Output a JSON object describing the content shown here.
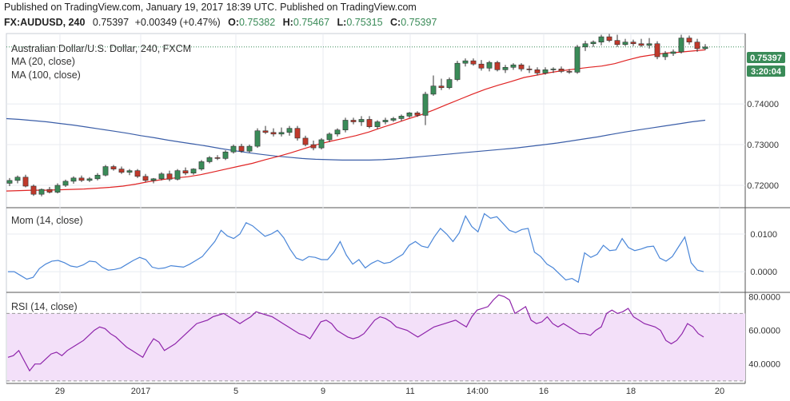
{
  "header": {
    "line1": "Published on TradingView.com, January 19, 2017 18:39 UTC. Published on TradingView.com",
    "symbol": "FX:AUDUSD, 240",
    "last": "0.75397",
    "change": "+0.00349 (+0.47%)",
    "o_label": "O:",
    "o": "0.75382",
    "h_label": "H:",
    "h": "0.75467",
    "l_label": "L:",
    "l": "0.75315",
    "c_label": "C:",
    "c": "0.75397"
  },
  "colors": {
    "up": "#3a8b58",
    "down": "#c0392b",
    "ma20": "#e02424",
    "ma100": "#3b5ea8",
    "mom": "#4a86d8",
    "rsi": "#8e24aa",
    "rsi_band": "#f3e0f9",
    "price_badge": "#3a8b58",
    "grid": "#e8ebf0"
  },
  "chart_data": [
    {
      "type": "candlestick",
      "title": "Australian Dollar/U.S. Dollar, 240, FXCM",
      "legend": [
        "MA (20, close)",
        "MA (100, close)"
      ],
      "x_ticks": [
        "29",
        "2017",
        "5",
        "9",
        "11",
        "14:00",
        "16",
        "18",
        "20"
      ],
      "y_ticks": [
        "0.74000",
        "0.73000",
        "0.72000"
      ],
      "ylim": [
        0.7145,
        0.7573
      ],
      "last_price_label": "0.75397",
      "countdown_label": "3:20:04",
      "candles": [
        [
          0.7205,
          0.7218,
          0.7198,
          0.7212
        ],
        [
          0.7212,
          0.7224,
          0.7205,
          0.722
        ],
        [
          0.722,
          0.7226,
          0.7195,
          0.7198
        ],
        [
          0.7198,
          0.7202,
          0.7174,
          0.7178
        ],
        [
          0.7178,
          0.7192,
          0.7173,
          0.719
        ],
        [
          0.719,
          0.7196,
          0.718,
          0.7183
        ],
        [
          0.7183,
          0.7205,
          0.718,
          0.72
        ],
        [
          0.72,
          0.7214,
          0.7196,
          0.721
        ],
        [
          0.721,
          0.7222,
          0.7204,
          0.7218
        ],
        [
          0.7218,
          0.7224,
          0.7208,
          0.7212
        ],
        [
          0.7212,
          0.722,
          0.7208,
          0.7216
        ],
        [
          0.7216,
          0.723,
          0.7212,
          0.7225
        ],
        [
          0.7225,
          0.725,
          0.7222,
          0.7246
        ],
        [
          0.7246,
          0.725,
          0.7236,
          0.724
        ],
        [
          0.724,
          0.7246,
          0.7228,
          0.7232
        ],
        [
          0.7232,
          0.724,
          0.7225,
          0.7236
        ],
        [
          0.7236,
          0.724,
          0.7218,
          0.7222
        ],
        [
          0.7222,
          0.7228,
          0.7208,
          0.7212
        ],
        [
          0.7212,
          0.7218,
          0.7205,
          0.7216
        ],
        [
          0.7216,
          0.7232,
          0.7212,
          0.7228
        ],
        [
          0.7228,
          0.7236,
          0.721,
          0.7215
        ],
        [
          0.7215,
          0.724,
          0.7212,
          0.7236
        ],
        [
          0.7236,
          0.7244,
          0.7225,
          0.723
        ],
        [
          0.723,
          0.7242,
          0.7226,
          0.724
        ],
        [
          0.724,
          0.7262,
          0.7236,
          0.7258
        ],
        [
          0.7258,
          0.7272,
          0.7254,
          0.7268
        ],
        [
          0.7268,
          0.7274,
          0.7262,
          0.7266
        ],
        [
          0.7266,
          0.7286,
          0.7262,
          0.7282
        ],
        [
          0.7282,
          0.73,
          0.7278,
          0.7296
        ],
        [
          0.7296,
          0.7302,
          0.728,
          0.7284
        ],
        [
          0.7284,
          0.73,
          0.728,
          0.7296
        ],
        [
          0.7296,
          0.734,
          0.7292,
          0.7334
        ],
        [
          0.7334,
          0.7346,
          0.7326,
          0.733
        ],
        [
          0.733,
          0.734,
          0.732,
          0.7326
        ],
        [
          0.7326,
          0.7342,
          0.732,
          0.733
        ],
        [
          0.733,
          0.7346,
          0.7322,
          0.734
        ],
        [
          0.734,
          0.7346,
          0.731,
          0.7316
        ],
        [
          0.7316,
          0.7322,
          0.7296,
          0.73
        ],
        [
          0.73,
          0.731,
          0.7286,
          0.7292
        ],
        [
          0.7292,
          0.7316,
          0.7288,
          0.7312
        ],
        [
          0.7312,
          0.733,
          0.7306,
          0.7326
        ],
        [
          0.7326,
          0.734,
          0.732,
          0.7336
        ],
        [
          0.7336,
          0.7366,
          0.733,
          0.736
        ],
        [
          0.736,
          0.7366,
          0.735,
          0.7356
        ],
        [
          0.7356,
          0.737,
          0.7346,
          0.7362
        ],
        [
          0.7362,
          0.737,
          0.734,
          0.7344
        ],
        [
          0.7344,
          0.736,
          0.7338,
          0.7356
        ],
        [
          0.7356,
          0.7366,
          0.735,
          0.736
        ],
        [
          0.736,
          0.7368,
          0.7356,
          0.7364
        ],
        [
          0.7364,
          0.7374,
          0.7358,
          0.737
        ],
        [
          0.737,
          0.738,
          0.7366,
          0.7378
        ],
        [
          0.7378,
          0.7382,
          0.7368,
          0.7372
        ],
        [
          0.7372,
          0.743,
          0.7348,
          0.7424
        ],
        [
          0.7424,
          0.747,
          0.742,
          0.7444
        ],
        [
          0.7444,
          0.7462,
          0.7434,
          0.744
        ],
        [
          0.744,
          0.7465,
          0.7436,
          0.746
        ],
        [
          0.746,
          0.7506,
          0.7456,
          0.75
        ],
        [
          0.75,
          0.7512,
          0.7492,
          0.7506
        ],
        [
          0.7506,
          0.7512,
          0.7494,
          0.7498
        ],
        [
          0.7498,
          0.7508,
          0.7482,
          0.7488
        ],
        [
          0.7488,
          0.7506,
          0.748,
          0.7502
        ],
        [
          0.7502,
          0.7506,
          0.748,
          0.7484
        ],
        [
          0.7484,
          0.7496,
          0.7476,
          0.749
        ],
        [
          0.749,
          0.75,
          0.7484,
          0.7496
        ],
        [
          0.7496,
          0.75,
          0.748,
          0.7486
        ],
        [
          0.7486,
          0.7494,
          0.7476,
          0.7484
        ],
        [
          0.7484,
          0.749,
          0.747,
          0.7476
        ],
        [
          0.7476,
          0.749,
          0.7472,
          0.7484
        ],
        [
          0.7484,
          0.749,
          0.7476,
          0.7486
        ],
        [
          0.7486,
          0.7492,
          0.7476,
          0.748
        ],
        [
          0.748,
          0.7486,
          0.7474,
          0.7478
        ],
        [
          0.7478,
          0.7545,
          0.7474,
          0.754
        ],
        [
          0.754,
          0.7555,
          0.753,
          0.7548
        ],
        [
          0.7548,
          0.7556,
          0.754,
          0.7552
        ],
        [
          0.7552,
          0.757,
          0.7544,
          0.7565
        ],
        [
          0.7565,
          0.7572,
          0.7552,
          0.7556
        ],
        [
          0.7556,
          0.757,
          0.754,
          0.7546
        ],
        [
          0.7546,
          0.756,
          0.7542,
          0.7552
        ],
        [
          0.7552,
          0.7558,
          0.7542,
          0.7548
        ],
        [
          0.7548,
          0.756,
          0.754,
          0.7544
        ],
        [
          0.7544,
          0.7562,
          0.7536,
          0.7548
        ],
        [
          0.7548,
          0.7554,
          0.751,
          0.7516
        ],
        [
          0.7516,
          0.753,
          0.7508,
          0.7524
        ],
        [
          0.7524,
          0.7534,
          0.7518,
          0.7528
        ],
        [
          0.7528,
          0.757,
          0.7524,
          0.7562
        ],
        [
          0.7562,
          0.7568,
          0.7546,
          0.7552
        ],
        [
          0.7552,
          0.756,
          0.7528,
          0.7536
        ],
        [
          0.7536,
          0.7547,
          0.7532,
          0.754
        ]
      ],
      "ma20": [
        0.7186,
        0.7187,
        0.7188,
        0.7188,
        0.7189,
        0.719,
        0.7191,
        0.7193,
        0.7195,
        0.7198,
        0.7203,
        0.7209,
        0.7214,
        0.7218,
        0.7221,
        0.7226,
        0.7233,
        0.724,
        0.7247,
        0.7254,
        0.7263,
        0.7271,
        0.728,
        0.729,
        0.73,
        0.7308,
        0.7315,
        0.7322,
        0.7331,
        0.7342,
        0.7352,
        0.7363,
        0.7373,
        0.7385,
        0.7398,
        0.7411,
        0.7424,
        0.7436,
        0.7446,
        0.7455,
        0.7465,
        0.7471,
        0.7477,
        0.7482,
        0.7486,
        0.749,
        0.7493,
        0.7499,
        0.7508,
        0.7516,
        0.7521,
        0.7525,
        0.7527,
        0.753,
        0.7533
      ],
      "ma100": [
        0.7364,
        0.7362,
        0.7359,
        0.7356,
        0.7352,
        0.7348,
        0.7343,
        0.7338,
        0.7333,
        0.7328,
        0.7322,
        0.7317,
        0.7311,
        0.7306,
        0.7301,
        0.7296,
        0.729,
        0.7285,
        0.728,
        0.7276,
        0.7272,
        0.7269,
        0.7266,
        0.7264,
        0.7263,
        0.7262,
        0.7262,
        0.7262,
        0.7263,
        0.7265,
        0.7268,
        0.7271,
        0.7274,
        0.7277,
        0.728,
        0.7283,
        0.7286,
        0.7289,
        0.7292,
        0.7296,
        0.73,
        0.7304,
        0.7309,
        0.7314,
        0.7319,
        0.7325,
        0.7331,
        0.7336,
        0.7341,
        0.7346,
        0.7351,
        0.7356,
        0.736
      ]
    },
    {
      "type": "line",
      "title": "Mom (14, close)",
      "y_ticks": [
        "0.0100",
        "0.0000"
      ],
      "ylim": [
        -0.0055,
        0.017
      ],
      "values": [
        0.0,
        0.0,
        -0.001,
        -0.002,
        -0.0015,
        0.0008,
        0.002,
        0.0028,
        0.003,
        0.0024,
        0.0015,
        0.0012,
        0.0018,
        0.0028,
        0.0026,
        0.0012,
        0.0004,
        0.0006,
        0.001,
        0.002,
        0.003,
        0.0038,
        0.0032,
        0.0012,
        0.0008,
        0.001,
        0.0016,
        0.0014,
        0.0012,
        0.002,
        0.003,
        0.004,
        0.006,
        0.008,
        0.011,
        0.0095,
        0.0088,
        0.01,
        0.013,
        0.0122,
        0.0108,
        0.0094,
        0.01,
        0.011,
        0.009,
        0.006,
        0.0036,
        0.003,
        0.004,
        0.0038,
        0.0032,
        0.0032,
        0.0052,
        0.008,
        0.0044,
        0.002,
        0.0032,
        0.001,
        0.0022,
        0.003,
        0.0022,
        0.0025,
        0.0036,
        0.0046,
        0.007,
        0.008,
        0.0068,
        0.0064,
        0.0092,
        0.0115,
        0.01,
        0.008,
        0.0103,
        0.0148,
        0.012,
        0.0106,
        0.0154,
        0.0142,
        0.0146,
        0.0128,
        0.011,
        0.0104,
        0.0112,
        0.0115,
        0.0052,
        0.004,
        0.002,
        0.001,
        -0.0006,
        -0.0022,
        -0.0018,
        -0.0028,
        0.005,
        0.0038,
        0.0046,
        0.007,
        0.0056,
        0.0058,
        0.0088,
        0.0064,
        0.0056,
        0.006,
        0.0066,
        0.0068,
        0.0036,
        0.0028,
        0.004,
        0.0066,
        0.0092,
        0.0024,
        0.0004,
        0.0
      ]
    },
    {
      "type": "line",
      "title": "RSI (14, close)",
      "y_ticks": [
        "80.0000",
        "60.0000",
        "40.0000"
      ],
      "band": [
        30,
        70
      ],
      "ylim": [
        28.5,
        82.5
      ],
      "values": [
        44,
        45,
        48,
        42,
        36,
        40,
        40,
        43,
        46,
        47,
        45,
        48,
        50,
        52,
        54,
        57,
        60,
        62,
        61,
        58,
        56,
        53,
        50,
        48,
        46,
        44,
        50,
        55,
        53,
        48,
        50,
        52,
        55,
        58,
        61,
        64,
        65,
        66,
        68,
        69,
        70,
        68,
        66,
        64,
        66,
        68,
        71,
        70,
        69,
        68,
        66,
        64,
        62,
        60,
        58,
        57,
        55,
        60,
        65,
        66,
        64,
        60,
        58,
        56,
        55,
        56,
        58,
        62,
        66,
        68,
        67,
        65,
        62,
        61,
        60,
        58,
        56,
        58,
        60,
        62,
        63,
        64,
        65,
        66,
        64,
        62,
        68,
        72,
        73,
        74,
        78,
        81,
        80,
        78,
        70,
        72,
        74,
        66,
        64,
        65,
        68,
        64,
        62,
        64,
        62,
        60,
        58,
        58,
        57,
        60,
        62,
        70,
        72,
        70,
        71,
        73,
        68,
        66,
        64,
        63,
        62,
        60,
        54,
        52,
        54,
        58,
        64,
        62,
        58,
        56
      ],
      "_note_rsi_len": 0
    }
  ]
}
